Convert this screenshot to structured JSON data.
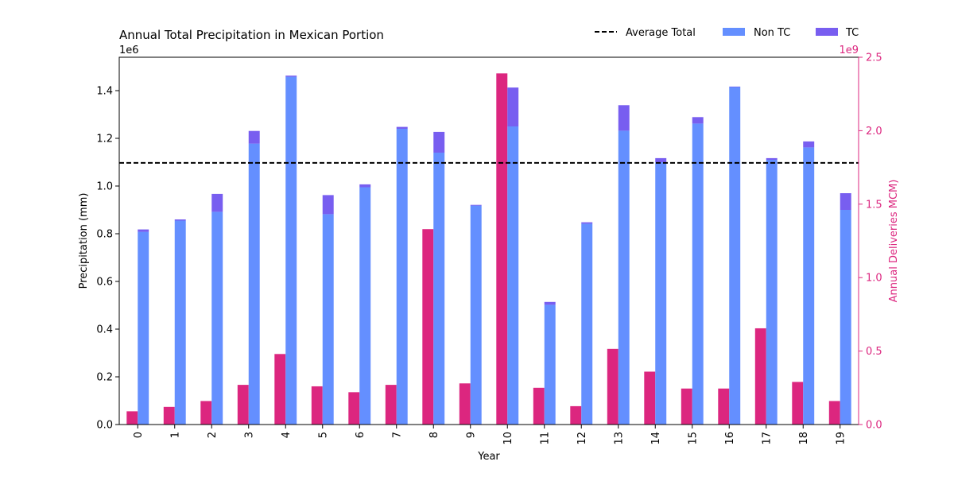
{
  "chart_data": {
    "type": "bar",
    "title": "Annual Total Precipitation in Mexican Portion",
    "xlabel": "Year",
    "ylabel": "Precipitation (mm)",
    "y2label": "Annual Deliveries MCM)",
    "y_offset_label": "1e6",
    "y2_offset_label": "1e9",
    "categories": [
      "0",
      "1",
      "2",
      "3",
      "4",
      "5",
      "6",
      "7",
      "8",
      "9",
      "10",
      "11",
      "12",
      "13",
      "14",
      "15",
      "16",
      "17",
      "18",
      "19"
    ],
    "ylim": [
      0,
      1.54
    ],
    "y2lim": [
      0,
      2.5
    ],
    "yticks": [
      "0.0",
      "0.2",
      "0.4",
      "0.6",
      "0.8",
      "1.0",
      "1.2",
      "1.4"
    ],
    "y2ticks": [
      "0.0",
      "0.5",
      "1.0",
      "1.5",
      "2.0",
      "2.5"
    ],
    "average_total": 1.097,
    "series": [
      {
        "name": "Non TC",
        "axis": "left",
        "stack": "precip",
        "values": [
          0.808,
          0.855,
          0.892,
          1.178,
          1.458,
          0.882,
          0.995,
          1.24,
          1.14,
          0.918,
          1.25,
          0.502,
          0.842,
          1.232,
          1.1,
          1.262,
          1.415,
          1.11,
          1.162,
          0.9
        ]
      },
      {
        "name": "TC",
        "axis": "left",
        "stack": "precip",
        "values": [
          0.01,
          0.005,
          0.075,
          0.053,
          0.005,
          0.08,
          0.012,
          0.008,
          0.087,
          0.003,
          0.163,
          0.012,
          0.006,
          0.107,
          0.017,
          0.027,
          0.002,
          0.007,
          0.025,
          0.07
        ]
      },
      {
        "name": "",
        "axis": "right",
        "values": [
          0.09,
          0.12,
          0.16,
          0.27,
          0.48,
          0.26,
          0.22,
          0.27,
          1.33,
          0.28,
          2.39,
          0.25,
          0.125,
          0.515,
          0.36,
          0.245,
          0.245,
          0.655,
          0.29,
          0.16
        ]
      }
    ],
    "legend": {
      "position": "top-right",
      "entries": [
        {
          "label": "Average Total",
          "kind": "dashed-line"
        },
        {
          "label": "Non TC",
          "kind": "patch"
        },
        {
          "label": "TC",
          "kind": "patch"
        }
      ]
    },
    "grid": false
  },
  "colors": {
    "non_tc": "#648fff",
    "tc": "#785ef0",
    "deliveries": "#dc267f",
    "average": "#000000",
    "axis": "#000000"
  }
}
